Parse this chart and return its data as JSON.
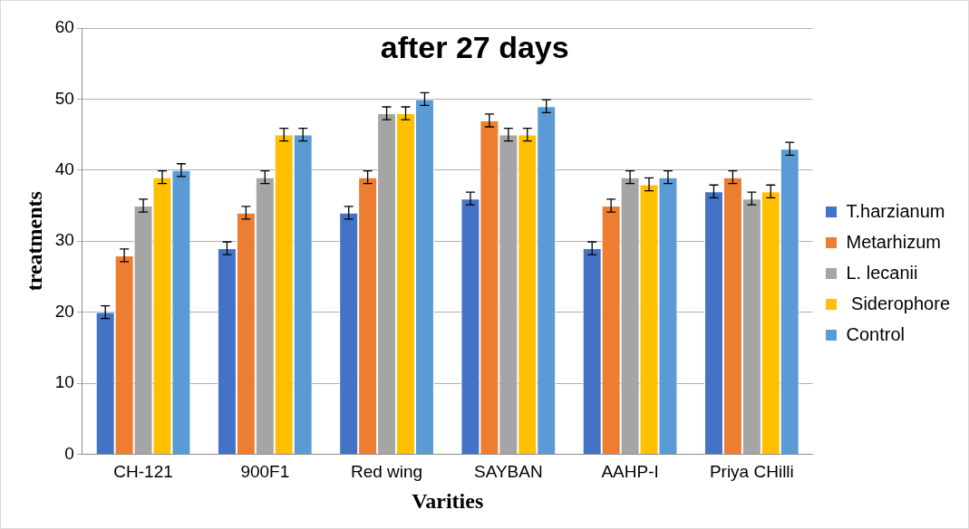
{
  "chart_data": {
    "type": "bar",
    "title": "after 27 days",
    "xlabel": "Varities",
    "ylabel": "treatments",
    "categories": [
      "CH-121",
      "900F1",
      "Red wing",
      "SAYBAN",
      "AAHP-I",
      "Priya CHilli"
    ],
    "series": [
      {
        "name": "T.harzianum",
        "color": "#4472c4",
        "values": [
          20,
          29,
          34,
          36,
          29,
          37
        ],
        "errors": [
          0.9,
          0.9,
          0.9,
          0.9,
          0.9,
          0.9
        ]
      },
      {
        "name": "Metarhizum",
        "color": "#ed7d31",
        "values": [
          28,
          34,
          39,
          47,
          35,
          39
        ],
        "errors": [
          0.9,
          0.9,
          0.9,
          0.9,
          0.9,
          0.9
        ]
      },
      {
        "name": "L. lecanii",
        "color": "#a5a5a5",
        "values": [
          35,
          39,
          48,
          45,
          39,
          36
        ],
        "errors": [
          0.9,
          0.9,
          0.9,
          0.9,
          0.9,
          0.9
        ]
      },
      {
        "name": " Siderophore",
        "color": "#ffc000",
        "values": [
          39,
          45,
          48,
          45,
          38,
          37
        ],
        "errors": [
          0.9,
          0.9,
          0.9,
          0.9,
          0.9,
          0.9
        ]
      },
      {
        "name": "Control",
        "color": "#5b9bd5",
        "values": [
          40,
          45,
          50,
          49,
          39,
          43
        ],
        "errors": [
          0.9,
          0.9,
          0.9,
          0.9,
          0.9,
          0.9
        ]
      }
    ],
    "ylim": [
      0,
      60
    ],
    "yticks": [
      0,
      10,
      20,
      30,
      40,
      50,
      60
    ],
    "grid": "y",
    "legend": "right"
  }
}
